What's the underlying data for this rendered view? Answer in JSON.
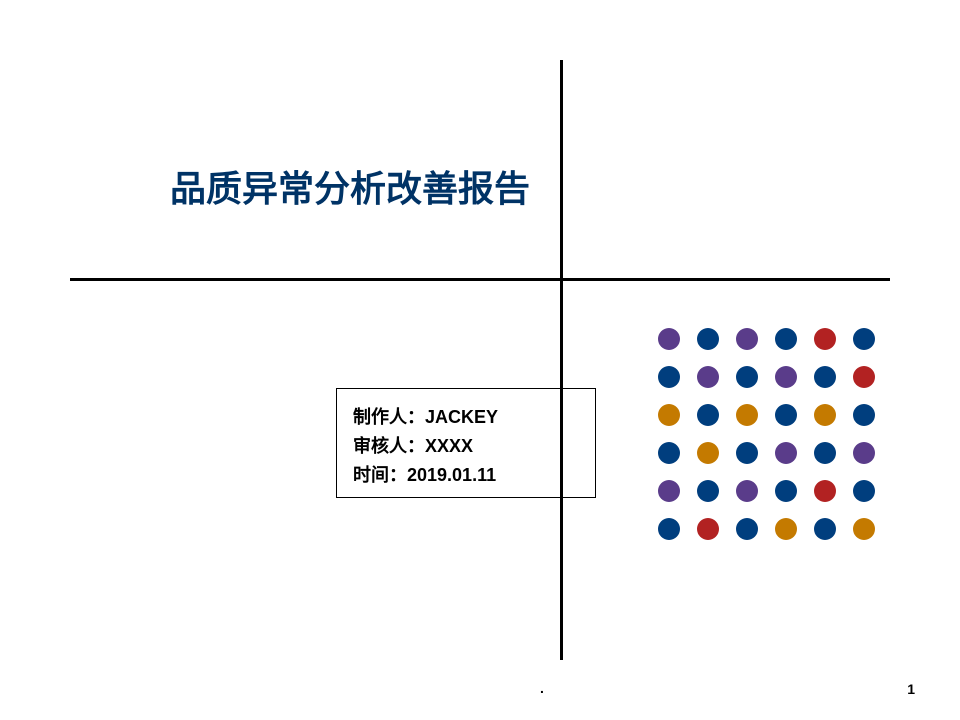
{
  "title": "品质异常分析改善报告",
  "info": {
    "author_label": "制作人：",
    "author_value": "JACKEY",
    "reviewer_label": "审核人：",
    "reviewer_value": "XXXX",
    "date_label": "时间：",
    "date_value": "2019.01.11"
  },
  "dots": {
    "colors": [
      [
        "#5a3c8a",
        "#003e7e",
        "#5a3c8a",
        "#003e7e",
        "#b22222",
        "#003e7e"
      ],
      [
        "#003e7e",
        "#5a3c8a",
        "#003e7e",
        "#5a3c8a",
        "#003e7e",
        "#b22222"
      ],
      [
        "#c47a00",
        "#003e7e",
        "#c47a00",
        "#003e7e",
        "#c47a00",
        "#003e7e"
      ],
      [
        "#003e7e",
        "#c47a00",
        "#003e7e",
        "#5a3c8a",
        "#003e7e",
        "#5a3c8a"
      ],
      [
        "#5a3c8a",
        "#003e7e",
        "#5a3c8a",
        "#003e7e",
        "#b22222",
        "#003e7e"
      ],
      [
        "#003e7e",
        "#b22222",
        "#003e7e",
        "#c47a00",
        "#003e7e",
        "#c47a00"
      ]
    ]
  },
  "footer_dot": ".",
  "page_number": "1",
  "colors": {
    "title": "#003366",
    "line": "#000000",
    "text": "#000000",
    "background": "#ffffff"
  }
}
